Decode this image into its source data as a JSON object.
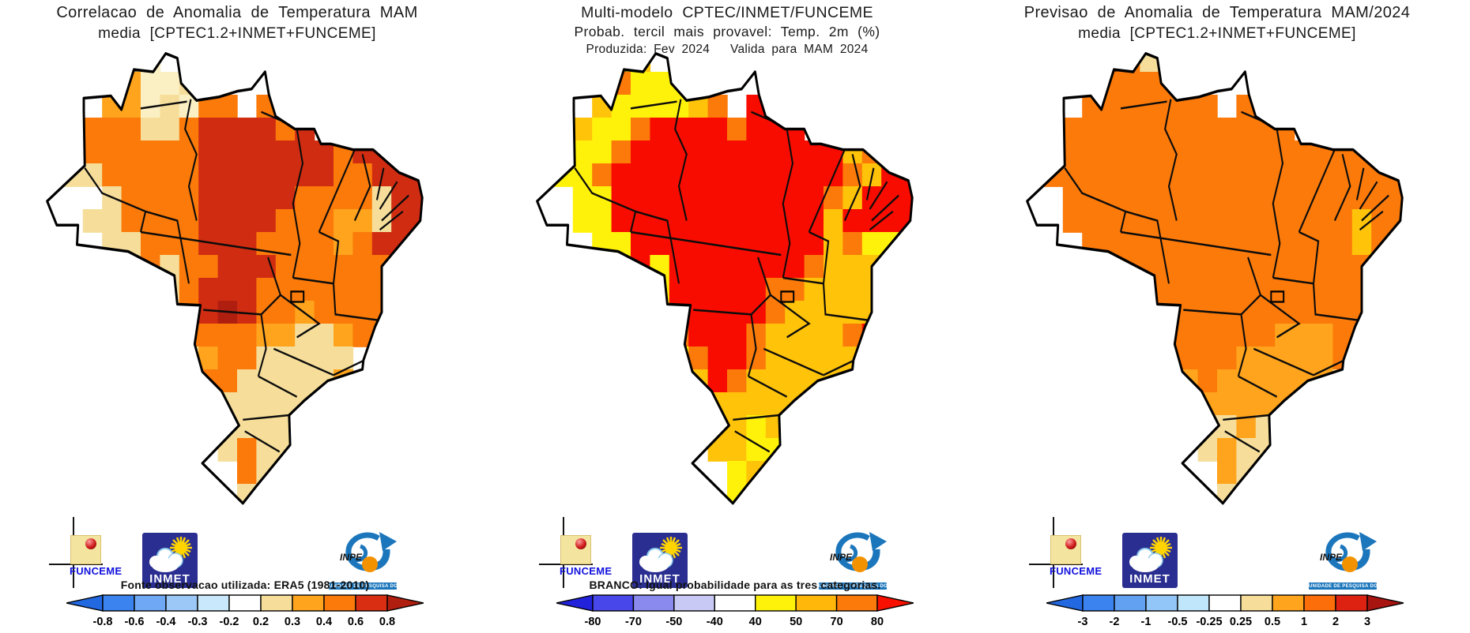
{
  "palette": {
    "w": "#FFFFFF",
    "p": "#FBF0C4",
    "k": "#F6DE9A",
    "o": "#FFA41C",
    "O": "#FB7A0A",
    "r": "#D02C12",
    "d": "#B01E10",
    "y": "#FFF20A",
    "g": "#FFC30A",
    "F": "#F80C00"
  },
  "logos": {
    "funceme_label": "FUNCEME",
    "inmet_label": "INMET",
    "inpe_label": "INPE",
    "inpe_banner": "UNIDADE DE PESQUISA DO MCTI"
  },
  "panels": [
    {
      "id": "correlation",
      "title_lines": [
        "Correlacao de Anomalia de Temperatura MAM",
        "media [CPTEC1.2+INMET+FUNCEME]"
      ],
      "footnote": "Fonte observacao utilizada: ERA5 (1981-2010)",
      "colorbar": {
        "labels": [
          "-0.8",
          "-0.6",
          "-0.4",
          "-0.3",
          "-0.2",
          "0.2",
          "0.3",
          "0.4",
          "0.6",
          "0.8"
        ],
        "cells": [
          "#3B83EE",
          "#6FA8F4",
          "#9CC8F8",
          "#C9E8FB",
          "#FFFFFF",
          "#F6DE9A",
          "#FFA41C",
          "#FB7A0A",
          "#D92E12"
        ],
        "arrow_left": "#2268E0",
        "arrow_right": "#B01E10"
      },
      "grid": [
        "wwwwkpwpwwwwwwwwwwww",
        "wwwwoppkwwwwwwwwwwww",
        "wwwoopkpOOwOOwwwwwww",
        "wwOOOkkOrrrrOrwwwwww",
        "wkOOOOOOrrrrrrrOrrww",
        "wkkOOOOOrrrrrrrOOrrr",
        "wwwkOOOOrrrrrOOOOkrr",
        "wwkkOOOOrrrrOOOookrr",
        "wwwkkOOOrrrOOOOoOrrw",
        "wwwwkOkOOrrrOOOOOOrw",
        "wwwwwkkOrrrOOOOOOOww",
        "wwwwwwkOrdrOOoOOOOww",
        "wwwwwkkOOOOookkoOOww",
        "wwwwwwkkoOOkkkkkwOww",
        "wwwwwwwkOOkkkkkowwww",
        "wwwwwwwwkkkkkkkwwwww",
        "wwwwwwwwOkkkkkwwwwww",
        "wwwwwwwwwkOkkwwwwwww",
        "wwwwwwwwwwOkwwwwwwww",
        "wwwwwwwwwwkwwwwwwwww"
      ]
    },
    {
      "id": "probability",
      "title_lines": [
        "Multi-modelo CPTEC/INMET/FUNCEME",
        "Probab. tercil mais provavel: Temp. 2m (%)",
        "Produzida: Fev 2024   Valida para MAM 2024"
      ],
      "footnote": "BRANCO: Igual probabilidade para as tres categorias.",
      "colorbar": {
        "labels": [
          "-80",
          "-70",
          "-50",
          "-40",
          "40",
          "50",
          "70",
          "80"
        ],
        "cells": [
          "#4747EA",
          "#8A8AEE",
          "#C9C9F6",
          "#FFFFFF",
          "#FFF20A",
          "#FFB70A",
          "#FB7A0A"
        ],
        "arrow_left": "#2222DC",
        "arrow_right": "#F81000"
      },
      "grid": [
        "wwwwygwywwwwwwwwwwww",
        "wwwwOyyywwwwwwwwwwww",
        "wwwgyyyygOwFFwwwwwww",
        "wwgyyOFFFFOFFFwwwwww",
        "wyyyOFFFFFFFFFFFgOFw",
        "wyyOFFFFFFFFFFFFOgFF",
        "wwyyFFFFFFFFFFFOgFFF",
        "wwyyFFFFFFFFFFFgFFFF",
        "wwwyyFFFFFFFFFFgOyyw",
        "wwwwyFyFFFFFFFOgggyw",
        "wwwwwyyFFFFFOOggggFw",
        "wwwwwwyFFFFFOgggggFw",
        "wwwwwyyOFFFOggggOFww",
        "wwwwwwyyOFFOggggggww",
        "wwwwwwwygFOggggggwww",
        "wwwwwwwwyggggggywwww",
        "wwwwwwwwgggyggwwwwww",
        "wwwwwwwwwggyywwwwwww",
        "wwwwwwwwwwygwwwwwwww",
        "wwwwwwwwwwywwwwwwwww"
      ]
    },
    {
      "id": "forecast",
      "title_lines": [
        "Previsao de Anomalia de Temperatura MAM/2024",
        "media [CPTEC1.2+INMET+FUNCEME]"
      ],
      "footnote": "",
      "colorbar": {
        "labels": [
          "-3",
          "-2",
          "-1",
          "-0.5",
          "-0.25",
          "0.25",
          "0.5",
          "1",
          "2",
          "3"
        ],
        "cells": [
          "#3B83EE",
          "#62A0F2",
          "#93C6F8",
          "#BFE6FA",
          "#FFFFFF",
          "#F6DE9A",
          "#FFA41C",
          "#FB6E0A",
          "#DD2212"
        ],
        "arrow_left": "#2268E0",
        "arrow_right": "#A81410"
      },
      "grid": [
        "wwwwOOkOwwwwwwwwwwww",
        "wwwwOOOOwwwwwwwwwwww",
        "wwwOOOOOOOwOOwwwwwww",
        "wwOOOOOOOOOOOOwwwwww",
        "wOOOOOOOOOOOOOOOOOww",
        "wOOOOOOOOOOOOOOOOOOO",
        "wwOOOOOOOOOOOOOOOOOO",
        "wwOOOOOOOOOOOOOOOgOO",
        "wwwOOOOOOOOOOOOOOgOw",
        "wwwwOOOOOOOOOOOOOOOw",
        "wwwwwOOOOOOOOOOOOOww",
        "wwwwwwOOOOOOOOOOOOww",
        "wwwwwOOOOOOOOoooOOww",
        "wwwwwwOOOOOoooooOwww",
        "wwwwwwwOoOooooookwww",
        "wwwwwwwwooooookkwwww",
        "wwwwwwwwokkokkwwwwww",
        "wwwwwwwwwkokkwwwwwww",
        "wwwwwwwwwwokwwwwwwww",
        "wwwwwwwwwwkwwwwwwwww"
      ]
    }
  ]
}
